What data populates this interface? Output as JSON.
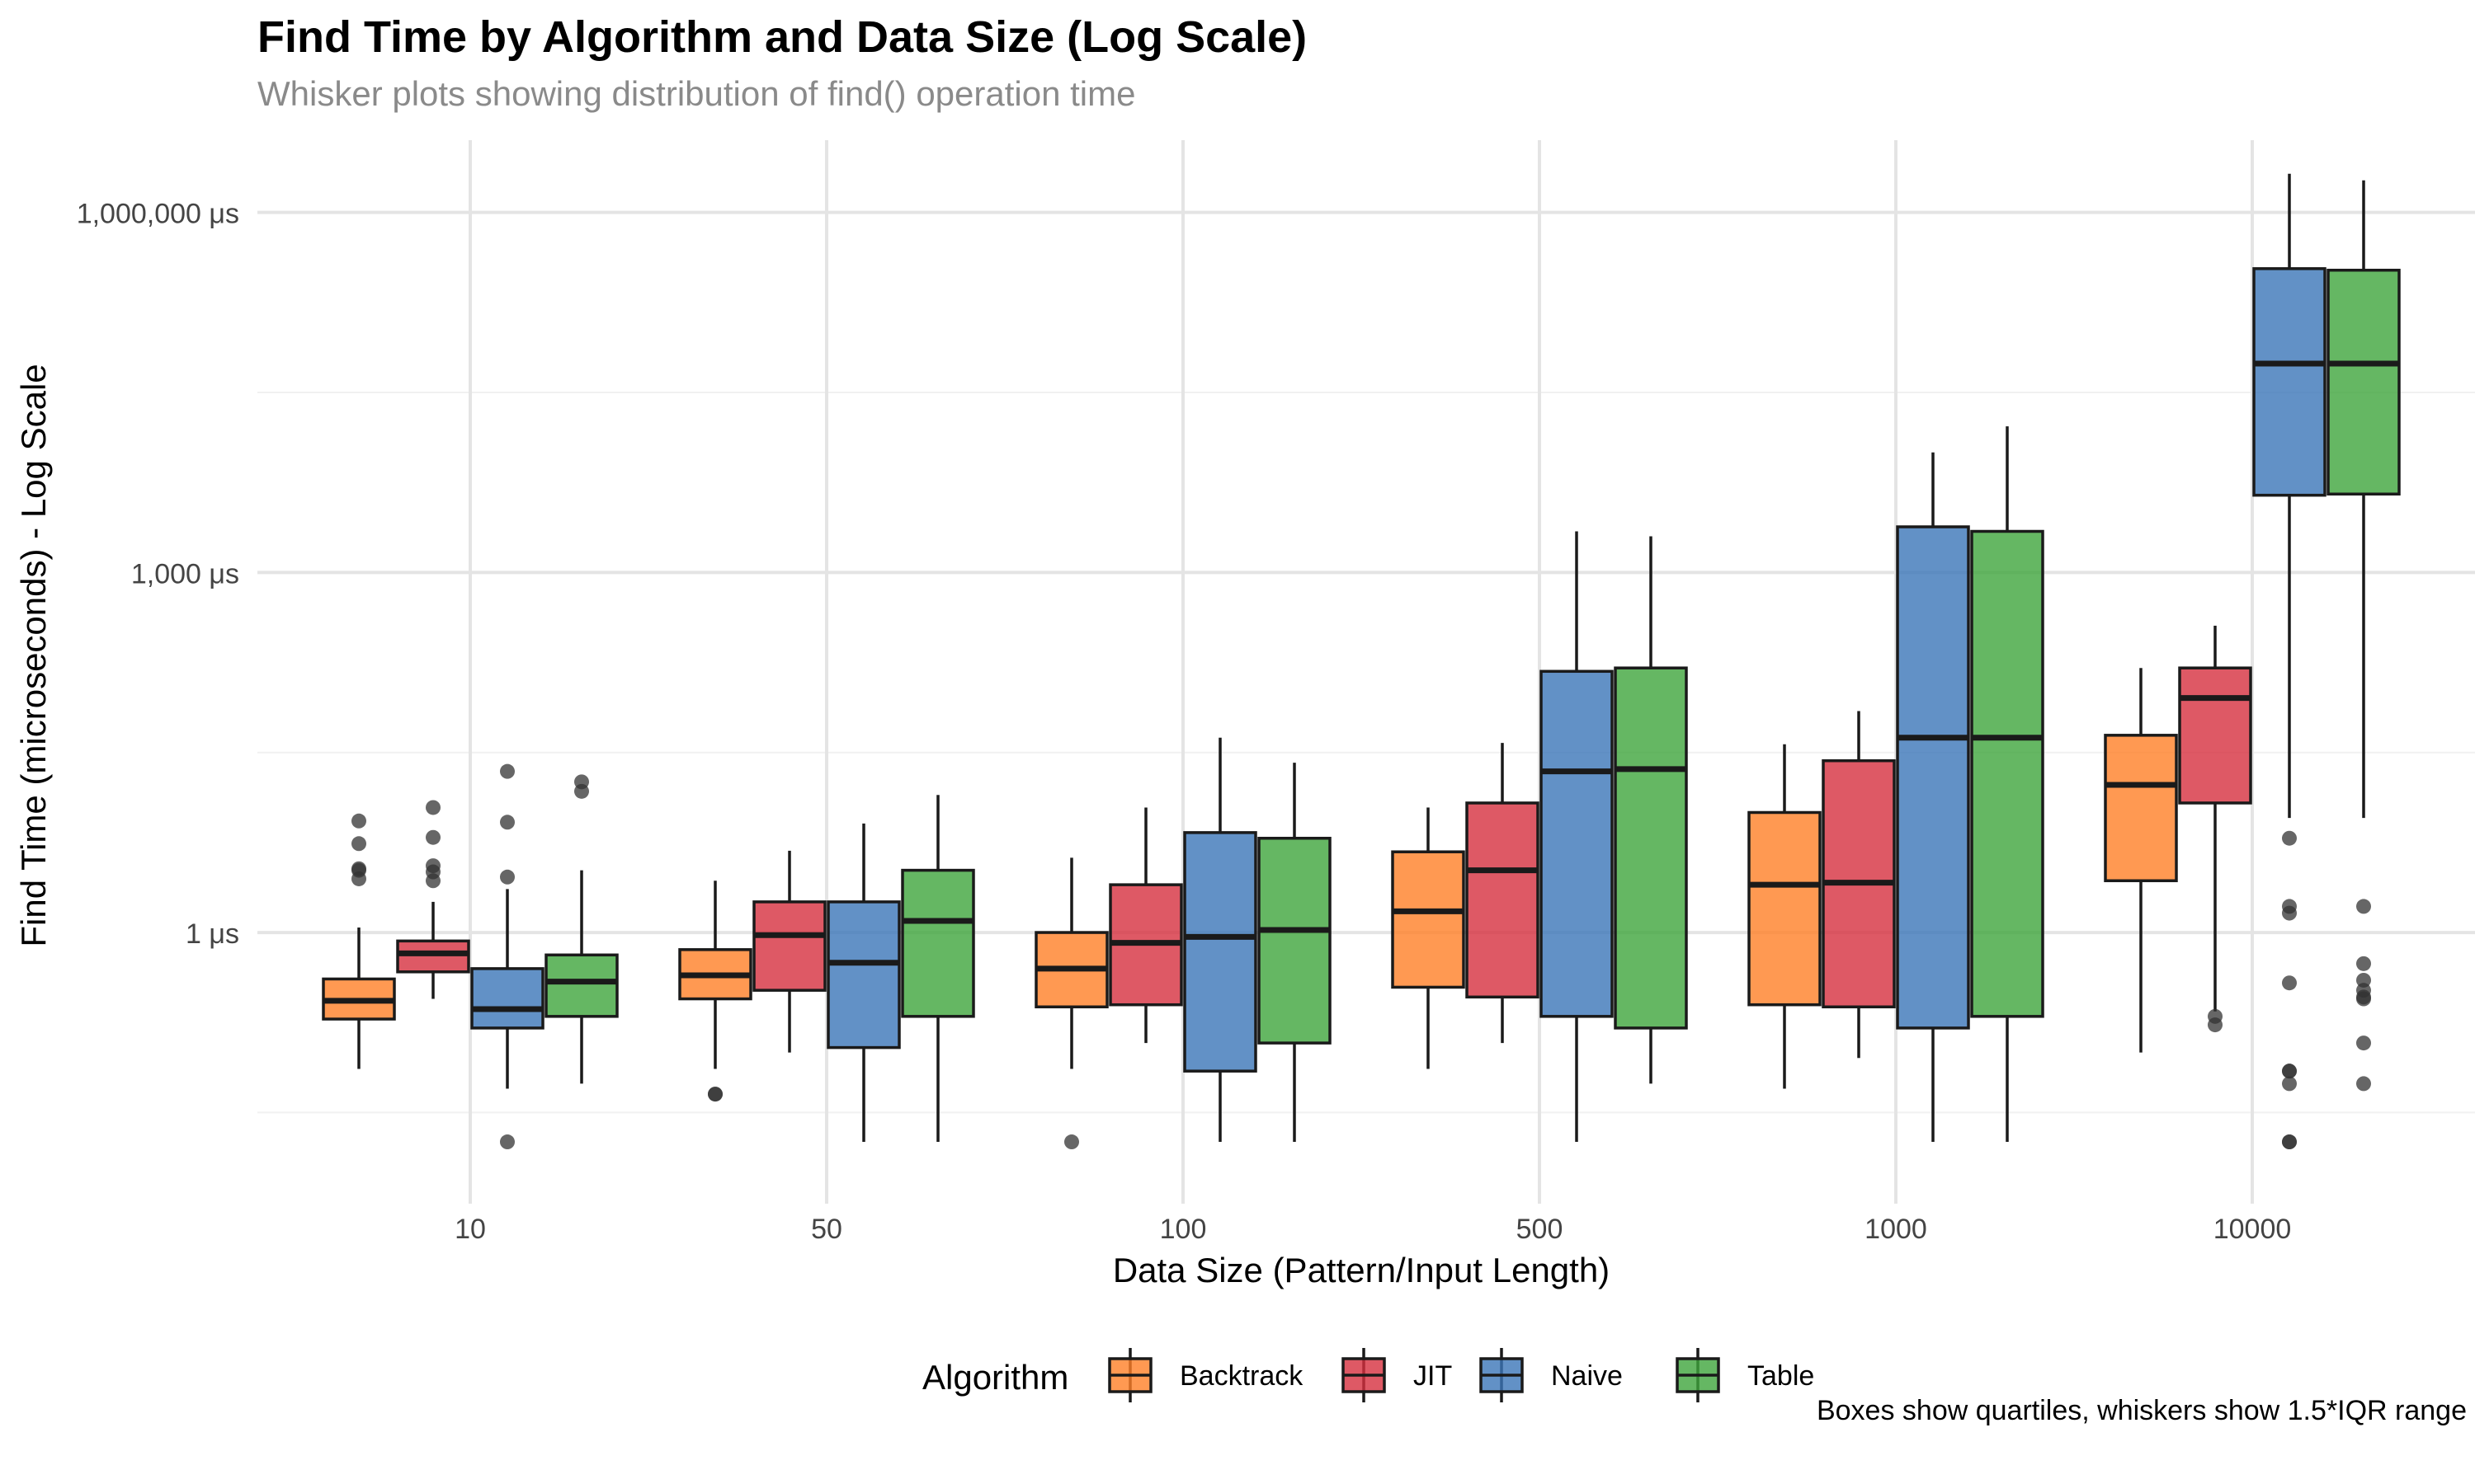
{
  "chart_data": {
    "type": "box",
    "title": "Find Time by Algorithm and Data Size (Log Scale)",
    "subtitle": "Whisker plots showing distribution of find() operation time",
    "xlabel": "Data Size (Pattern/Input Length)",
    "ylabel": "Find Time (microseconds) - Log Scale",
    "caption": "Boxes show quartiles, whiskers show 1.5*IQR range",
    "y_scale": "log10",
    "ylim": [
      0.0055,
      4000000
    ],
    "y_ticks": [
      1,
      1000,
      1000000
    ],
    "y_tick_labels": [
      "1 μs",
      "1,000 μs",
      "1,000,000 μs"
    ],
    "categories": [
      "10",
      "50",
      "100",
      "500",
      "1000",
      "10000"
    ],
    "grid": true,
    "legend": {
      "title": "Algorithm",
      "position": "bottom",
      "items": [
        {
          "name": "Backtrack",
          "color": "#FF7F27"
        },
        {
          "name": "JIT",
          "color": "#D62F3F"
        },
        {
          "name": "Naive",
          "color": "#3B76B8"
        },
        {
          "name": "Table",
          "color": "#3EA53C"
        }
      ]
    },
    "series": [
      {
        "name": "Backtrack",
        "color": "#FF7F27",
        "boxes": [
          {
            "category": "10",
            "low": 0.073,
            "q1": 0.19,
            "median": 0.27,
            "q3": 0.41,
            "high": 1.1,
            "outliers": [
              8.5,
              5.5,
              3.4,
              3.3,
              2.8
            ]
          },
          {
            "category": "50",
            "low": 0.073,
            "q1": 0.28,
            "median": 0.44,
            "q3": 0.72,
            "high": 2.7,
            "outliers": [
              0.045,
              0.045
            ]
          },
          {
            "category": "100",
            "low": 0.073,
            "q1": 0.24,
            "median": 0.5,
            "q3": 1.0,
            "high": 4.2,
            "outliers": [
              0.018
            ]
          },
          {
            "category": "500",
            "low": 0.073,
            "q1": 0.35,
            "median": 1.5,
            "q3": 4.7,
            "high": 11,
            "outliers": []
          },
          {
            "category": "1000",
            "low": 0.05,
            "q1": 0.25,
            "median": 2.5,
            "q3": 10,
            "high": 37,
            "outliers": []
          },
          {
            "category": "10000",
            "low": 0.1,
            "q1": 2.7,
            "median": 17,
            "q3": 44,
            "high": 160,
            "outliers": []
          }
        ]
      },
      {
        "name": "JIT",
        "color": "#D62F3F",
        "boxes": [
          {
            "category": "10",
            "low": 0.28,
            "q1": 0.47,
            "median": 0.67,
            "q3": 0.85,
            "high": 1.8,
            "outliers": [
              11,
              6.2,
              3.6,
              3.2,
              2.7
            ]
          },
          {
            "category": "50",
            "low": 0.1,
            "q1": 0.33,
            "median": 0.95,
            "q3": 1.8,
            "high": 4.8,
            "outliers": []
          },
          {
            "category": "100",
            "low": 0.12,
            "q1": 0.25,
            "median": 0.82,
            "q3": 2.5,
            "high": 11,
            "outliers": []
          },
          {
            "category": "500",
            "low": 0.12,
            "q1": 0.29,
            "median": 3.3,
            "q3": 12,
            "high": 38,
            "outliers": []
          },
          {
            "category": "1000",
            "low": 0.09,
            "q1": 0.24,
            "median": 2.6,
            "q3": 27,
            "high": 70,
            "outliers": []
          },
          {
            "category": "10000",
            "low": 0.22,
            "q1": 12,
            "median": 90,
            "q3": 160,
            "high": 360,
            "outliers": [
              0.17,
              0.2
            ]
          }
        ]
      },
      {
        "name": "Naive",
        "color": "#3B76B8",
        "boxes": [
          {
            "category": "10",
            "low": 0.05,
            "q1": 0.16,
            "median": 0.23,
            "q3": 0.5,
            "high": 2.3,
            "outliers": [
              22,
              8.3,
              2.9,
              0.018
            ]
          },
          {
            "category": "50",
            "low": 0.018,
            "q1": 0.11,
            "median": 0.56,
            "q3": 1.8,
            "high": 8.1,
            "outliers": []
          },
          {
            "category": "100",
            "low": 0.018,
            "q1": 0.07,
            "median": 0.92,
            "q3": 6.8,
            "high": 42,
            "outliers": []
          },
          {
            "category": "500",
            "low": 0.018,
            "q1": 0.2,
            "median": 22,
            "q3": 150,
            "high": 2200,
            "outliers": []
          },
          {
            "category": "1000",
            "low": 0.018,
            "q1": 0.16,
            "median": 42,
            "q3": 2400,
            "high": 10000,
            "outliers": []
          },
          {
            "category": "10000",
            "low": 9,
            "q1": 4400,
            "median": 55000,
            "q3": 340000,
            "high": 2100000,
            "outliers": [
              6.1,
              1.65,
              1.45,
              0.38,
              0.07,
              0.07,
              0.055,
              0.018,
              0.018
            ]
          }
        ]
      },
      {
        "name": "Table",
        "color": "#3EA53C",
        "boxes": [
          {
            "category": "10",
            "low": 0.055,
            "q1": 0.2,
            "median": 0.39,
            "q3": 0.65,
            "high": 3.3,
            "outliers": [
              18,
              15
            ]
          },
          {
            "category": "50",
            "low": 0.018,
            "q1": 0.2,
            "median": 1.25,
            "q3": 3.3,
            "high": 14,
            "outliers": []
          },
          {
            "category": "100",
            "low": 0.018,
            "q1": 0.12,
            "median": 1.05,
            "q3": 6.1,
            "high": 26,
            "outliers": []
          },
          {
            "category": "500",
            "low": 0.055,
            "q1": 0.16,
            "median": 23,
            "q3": 160,
            "high": 2000,
            "outliers": []
          },
          {
            "category": "1000",
            "low": 0.018,
            "q1": 0.2,
            "median": 42,
            "q3": 2200,
            "high": 16500,
            "outliers": []
          },
          {
            "category": "10000",
            "low": 9,
            "q1": 4500,
            "median": 55000,
            "q3": 330000,
            "high": 1850000,
            "outliers": [
              1.65,
              0.55,
              0.4,
              0.33,
              0.29,
              0.28,
              0.12,
              0.055
            ]
          }
        ]
      }
    ]
  }
}
